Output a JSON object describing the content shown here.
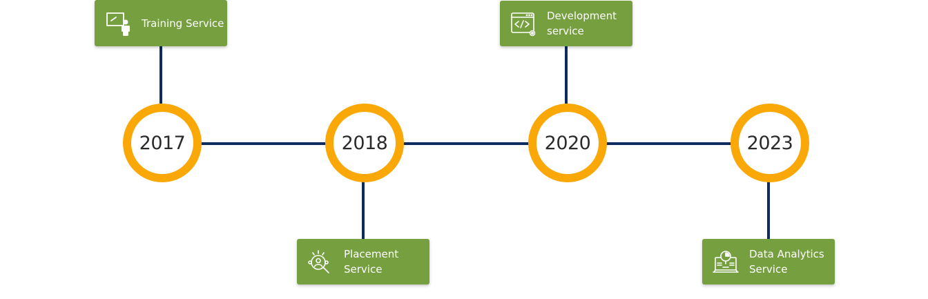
{
  "timeline": {
    "milestones": [
      {
        "year": "2017",
        "service": "Training Service",
        "position": "top",
        "icon": "presentation-icon"
      },
      {
        "year": "2018",
        "service": "Placement Service",
        "position": "bottom",
        "icon": "recruitment-search-icon"
      },
      {
        "year": "2020",
        "service": "Development service",
        "position": "top",
        "icon": "code-window-icon"
      },
      {
        "year": "2023",
        "service": "Data Analytics Service",
        "position": "bottom",
        "icon": "analytics-report-icon"
      }
    ],
    "colors": {
      "line": "#0d2b5e",
      "circle_ring": "#f9a808",
      "card": "#76a040",
      "card_text": "#ffffff",
      "year_text": "#2b2b2b"
    }
  }
}
